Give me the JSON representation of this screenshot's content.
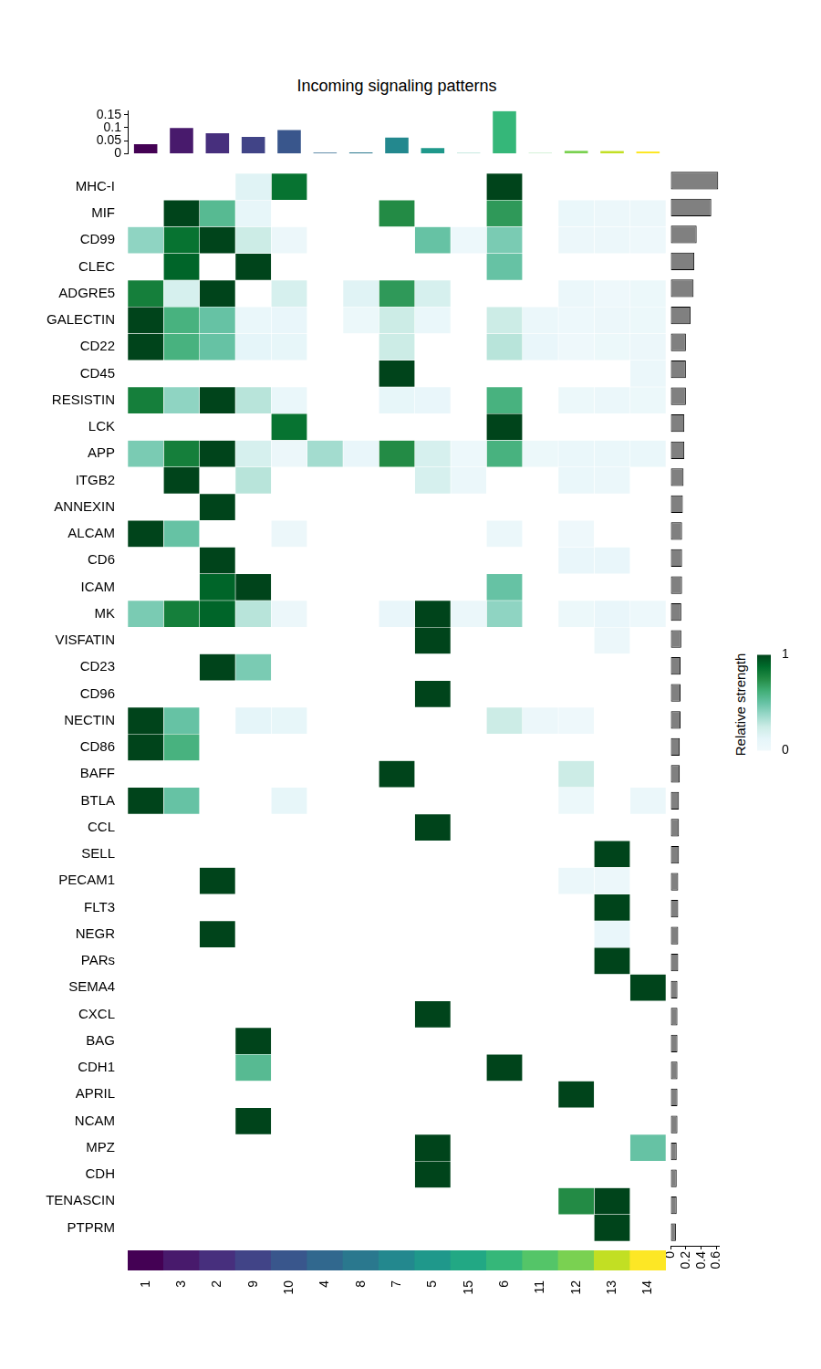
{
  "chart_data": [
    {
      "type": "heatmap",
      "title": "Incoming signaling patterns",
      "columns": [
        "1",
        "3",
        "2",
        "9",
        "10",
        "4",
        "8",
        "7",
        "5",
        "15",
        "6",
        "11",
        "12",
        "13",
        "14"
      ],
      "colors": [
        "#440154",
        "#481a6c",
        "#472f7d",
        "#414487",
        "#39568c",
        "#31688e",
        "#2a788e",
        "#23888e",
        "#1f988b",
        "#22a884",
        "#35b779",
        "#54c568",
        "#7ad151",
        "#c2df23",
        "#fde725"
      ],
      "rows": [
        "MHC-I",
        "MIF",
        "CD99",
        "CLEC",
        "ADGRE5",
        "GALECTIN",
        "CD22",
        "CD45",
        "RESISTIN",
        "LCK",
        "APP",
        "ITGB2",
        "ANNEXIN",
        "ALCAM",
        "CD6",
        "ICAM",
        "MK",
        "VISFATIN",
        "CD23",
        "CD96",
        "NECTIN",
        "CD86",
        "BAFF",
        "BTLA",
        "CCL",
        "SELL",
        "PECAM1",
        "FLT3",
        "NEGR",
        "PARs",
        "SEMA4",
        "CXCL",
        "BAG",
        "CDH1",
        "APRIL",
        "NCAM",
        "MPZ",
        "CDH",
        "TENASCIN",
        "PTPRM"
      ],
      "cells": [
        [
          null,
          null,
          null,
          0.15,
          0.85,
          null,
          null,
          null,
          null,
          null,
          1,
          null,
          null,
          null,
          null
        ],
        [
          null,
          1,
          0.55,
          0.1,
          null,
          null,
          null,
          0.75,
          null,
          null,
          0.7,
          null,
          0.07,
          0.05,
          0.05
        ],
        [
          0.4,
          0.85,
          1,
          0.25,
          0.05,
          null,
          null,
          null,
          0.5,
          0.03,
          0.45,
          null,
          0.05,
          0.05,
          0.02
        ],
        [
          null,
          0.9,
          null,
          1,
          null,
          null,
          null,
          null,
          null,
          null,
          0.5,
          null,
          null,
          null,
          null
        ],
        [
          0.8,
          0.2,
          1,
          null,
          0.2,
          null,
          0.15,
          0.7,
          0.2,
          null,
          null,
          null,
          0.06,
          0.02,
          0.04
        ],
        [
          1,
          0.6,
          0.5,
          0.07,
          0.08,
          null,
          0.04,
          0.25,
          0.07,
          null,
          0.25,
          0.06,
          0.03,
          0.05,
          0.04
        ],
        [
          1,
          0.6,
          0.5,
          0.12,
          0.1,
          null,
          null,
          0.25,
          null,
          null,
          0.3,
          0.08,
          0.02,
          0.04,
          0.05
        ],
        [
          null,
          null,
          null,
          null,
          null,
          null,
          null,
          1,
          null,
          null,
          null,
          null,
          null,
          null,
          0.06
        ],
        [
          0.8,
          0.4,
          1,
          0.3,
          0.07,
          null,
          null,
          0.1,
          0.08,
          null,
          0.6,
          null,
          0.04,
          0.06,
          0.04
        ],
        [
          null,
          null,
          null,
          null,
          0.85,
          null,
          null,
          null,
          null,
          null,
          1,
          null,
          null,
          null,
          null
        ],
        [
          0.45,
          0.8,
          1,
          0.2,
          0.05,
          0.35,
          0.08,
          0.75,
          0.2,
          0.03,
          0.6,
          0.04,
          0.07,
          0.07,
          0.07
        ],
        [
          null,
          1,
          null,
          0.3,
          null,
          null,
          null,
          null,
          0.2,
          0.06,
          null,
          null,
          0.07,
          0.06,
          null
        ],
        [
          null,
          null,
          1,
          null,
          null,
          null,
          null,
          null,
          null,
          null,
          null,
          null,
          null,
          null,
          null
        ],
        [
          1,
          0.5,
          null,
          null,
          0.05,
          null,
          null,
          null,
          null,
          null,
          0.06,
          null,
          0.02,
          null,
          null
        ],
        [
          null,
          null,
          1,
          null,
          null,
          null,
          null,
          null,
          null,
          null,
          null,
          null,
          0.08,
          0.08,
          null
        ],
        [
          null,
          null,
          0.9,
          1,
          null,
          null,
          null,
          null,
          null,
          null,
          0.5,
          null,
          null,
          null,
          null
        ],
        [
          0.45,
          0.8,
          0.9,
          0.3,
          0.05,
          null,
          null,
          0.08,
          1,
          0.06,
          0.4,
          null,
          0.04,
          0.08,
          0.03
        ],
        [
          null,
          null,
          null,
          null,
          null,
          null,
          null,
          null,
          1,
          null,
          null,
          null,
          null,
          0.05,
          null
        ],
        [
          null,
          null,
          1,
          0.45,
          null,
          null,
          null,
          null,
          null,
          null,
          null,
          null,
          null,
          null,
          null
        ],
        [
          null,
          null,
          null,
          null,
          null,
          null,
          null,
          null,
          1,
          null,
          null,
          null,
          null,
          null,
          null
        ],
        [
          1,
          0.5,
          null,
          0.12,
          0.1,
          null,
          null,
          null,
          null,
          null,
          0.25,
          0.05,
          0.02,
          null,
          null
        ],
        [
          1,
          0.6,
          null,
          null,
          null,
          null,
          null,
          null,
          null,
          null,
          null,
          null,
          null,
          null,
          null
        ],
        [
          null,
          null,
          null,
          null,
          null,
          null,
          null,
          1,
          null,
          null,
          null,
          null,
          0.25,
          null,
          null
        ],
        [
          1,
          0.5,
          null,
          null,
          0.1,
          null,
          null,
          null,
          null,
          null,
          null,
          null,
          0.04,
          null,
          0.06
        ],
        [
          null,
          null,
          null,
          null,
          null,
          null,
          null,
          null,
          1,
          null,
          null,
          null,
          null,
          null,
          null
        ],
        [
          null,
          null,
          null,
          null,
          null,
          null,
          null,
          null,
          null,
          null,
          null,
          null,
          null,
          1,
          null
        ],
        [
          null,
          null,
          1,
          null,
          null,
          null,
          null,
          null,
          null,
          null,
          null,
          null,
          0.06,
          0.05,
          null
        ],
        [
          null,
          null,
          null,
          null,
          null,
          null,
          null,
          null,
          null,
          null,
          null,
          null,
          null,
          1,
          null
        ],
        [
          null,
          null,
          1,
          null,
          null,
          null,
          null,
          null,
          null,
          null,
          null,
          null,
          null,
          0.08,
          null
        ],
        [
          null,
          null,
          null,
          null,
          null,
          null,
          null,
          null,
          null,
          null,
          null,
          null,
          null,
          1,
          null
        ],
        [
          null,
          null,
          null,
          null,
          null,
          null,
          null,
          null,
          null,
          null,
          null,
          null,
          null,
          null,
          1
        ],
        [
          null,
          null,
          null,
          null,
          null,
          null,
          null,
          null,
          1,
          null,
          null,
          null,
          null,
          null,
          null
        ],
        [
          null,
          null,
          null,
          1,
          null,
          null,
          null,
          null,
          null,
          null,
          null,
          null,
          null,
          null,
          null
        ],
        [
          null,
          null,
          null,
          0.55,
          null,
          null,
          null,
          null,
          null,
          null,
          1,
          null,
          null,
          null,
          null
        ],
        [
          null,
          null,
          null,
          null,
          null,
          null,
          null,
          null,
          null,
          null,
          null,
          null,
          1,
          null,
          null
        ],
        [
          null,
          null,
          null,
          1,
          null,
          null,
          null,
          null,
          null,
          null,
          null,
          null,
          null,
          null,
          null
        ],
        [
          null,
          null,
          null,
          null,
          null,
          null,
          null,
          null,
          1,
          null,
          null,
          null,
          null,
          null,
          0.5
        ],
        [
          null,
          null,
          null,
          null,
          null,
          null,
          null,
          null,
          1,
          null,
          null,
          null,
          null,
          null,
          null
        ],
        [
          null,
          null,
          null,
          null,
          null,
          null,
          null,
          null,
          null,
          null,
          null,
          null,
          0.75,
          1,
          null
        ],
        [
          null,
          null,
          null,
          null,
          null,
          null,
          null,
          null,
          null,
          null,
          null,
          null,
          null,
          1,
          null
        ]
      ],
      "colorbar": {
        "label": "Relative strength",
        "range": [
          0,
          1
        ],
        "ticks": [
          0,
          1
        ]
      }
    },
    {
      "type": "bar",
      "categories": [
        "1",
        "3",
        "2",
        "9",
        "10",
        "4",
        "8",
        "7",
        "5",
        "15",
        "6",
        "11",
        "12",
        "13",
        "14"
      ],
      "values": [
        0.037,
        0.099,
        0.079,
        0.065,
        0.091,
        0.005,
        0.006,
        0.062,
        0.022,
        0.003,
        0.164,
        0.003,
        0.012,
        0.011,
        0.009
      ],
      "colors": [
        "#440154",
        "#481a6c",
        "#472f7d",
        "#414487",
        "#39568c",
        "#31688e",
        "#2a788e",
        "#23888e",
        "#1f988b",
        "#22a884",
        "#35b779",
        "#54c568",
        "#7ad151",
        "#c2df23",
        "#fde725"
      ],
      "ylim": [
        0,
        0.165
      ],
      "yticks": [
        0,
        0.05,
        0.1,
        0.15
      ]
    },
    {
      "type": "bar",
      "orientation": "horizontal",
      "categories": [
        "MHC-I",
        "MIF",
        "CD99",
        "CLEC",
        "ADGRE5",
        "GALECTIN",
        "CD22",
        "CD45",
        "RESISTIN",
        "LCK",
        "APP",
        "ITGB2",
        "ANNEXIN",
        "ALCAM",
        "CD6",
        "ICAM",
        "MK",
        "VISFATIN",
        "CD23",
        "CD96",
        "NECTIN",
        "CD86",
        "BAFF",
        "BTLA",
        "CCL",
        "SELL",
        "PECAM1",
        "FLT3",
        "NEGR",
        "PARs",
        "SEMA4",
        "CXCL",
        "BAG",
        "CDH1",
        "APRIL",
        "NCAM",
        "MPZ",
        "CDH",
        "TENASCIN",
        "PTPRM"
      ],
      "values": [
        0.62,
        0.53,
        0.34,
        0.31,
        0.3,
        0.26,
        0.2,
        0.2,
        0.2,
        0.18,
        0.18,
        0.17,
        0.16,
        0.15,
        0.15,
        0.15,
        0.14,
        0.14,
        0.13,
        0.13,
        0.13,
        0.12,
        0.12,
        0.11,
        0.11,
        0.11,
        0.1,
        0.1,
        0.1,
        0.1,
        0.09,
        0.09,
        0.09,
        0.09,
        0.09,
        0.09,
        0.08,
        0.08,
        0.08,
        0.07
      ],
      "color": "#808080",
      "xlim": [
        0,
        0.63
      ],
      "xticks": [
        0,
        0.2,
        0.4,
        0.6
      ]
    }
  ]
}
